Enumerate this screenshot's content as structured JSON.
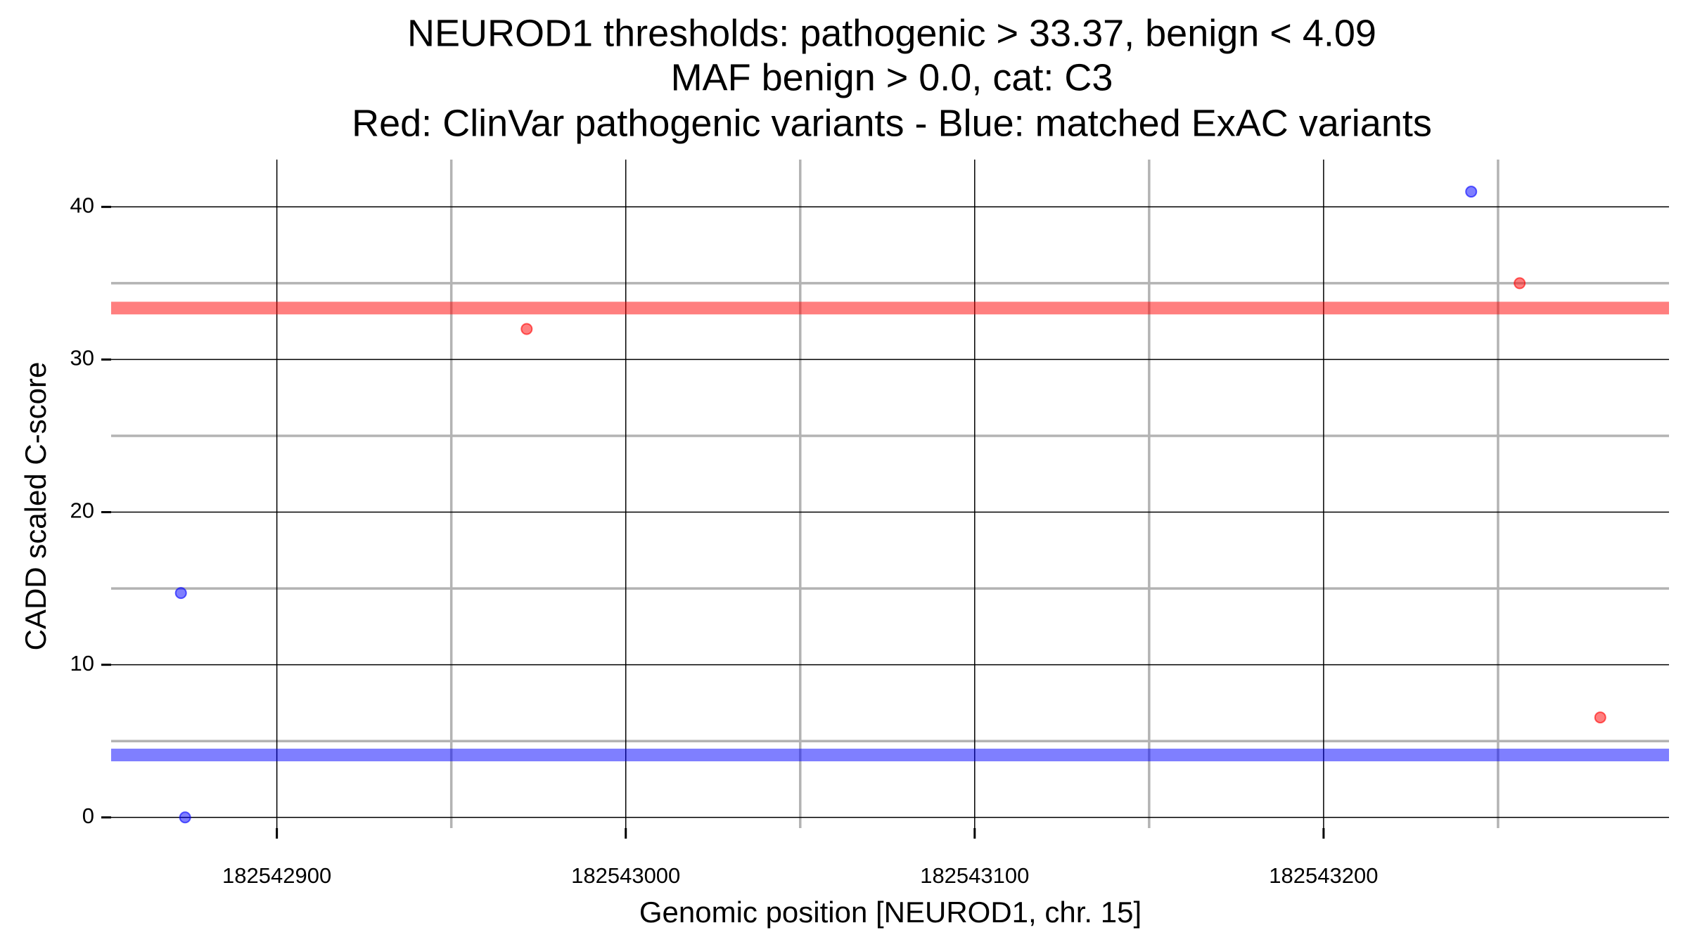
{
  "chart_data": {
    "type": "scatter",
    "title": [
      "NEUROD1 thresholds: pathogenic > 33.37, benign < 4.09",
      "MAF benign > 0.0, cat: C3",
      "Red: ClinVar pathogenic variants - Blue: matched ExAC variants"
    ],
    "x_label": "Genomic position [NEUROD1, chr. 15]",
    "y_label": "CADD scaled C-score",
    "series": [
      {
        "name": "ClinVar pathogenic variants",
        "color": "#ff0000",
        "x": [
          182542971.6,
          182543256.2,
          182543279.3
        ],
        "values": [
          32.0,
          35.0,
          6.55
        ]
      },
      {
        "name": "matched ExAC variants",
        "color": "#0000ff",
        "x": [
          182542872.5,
          182542873.7,
          182543242.3
        ],
        "values": [
          14.7,
          0,
          41
        ]
      }
    ],
    "hlines": [
      {
        "value": 33.37,
        "color": "#ff0000"
      },
      {
        "value": 4.09,
        "color": "#0000ff"
      }
    ],
    "xlim": [
      182542852.5,
      182543299
    ],
    "ylim": [
      -0.7,
      43.1
    ],
    "xticks": [
      182542900,
      182543000,
      182543100,
      182543200
    ],
    "yticks": [
      0,
      10,
      20,
      30,
      40
    ],
    "minor_xticks": [
      182542950,
      182543050,
      182543150,
      182543250
    ],
    "minor_yticks": [
      5,
      15,
      25,
      35
    ],
    "grid": true
  }
}
